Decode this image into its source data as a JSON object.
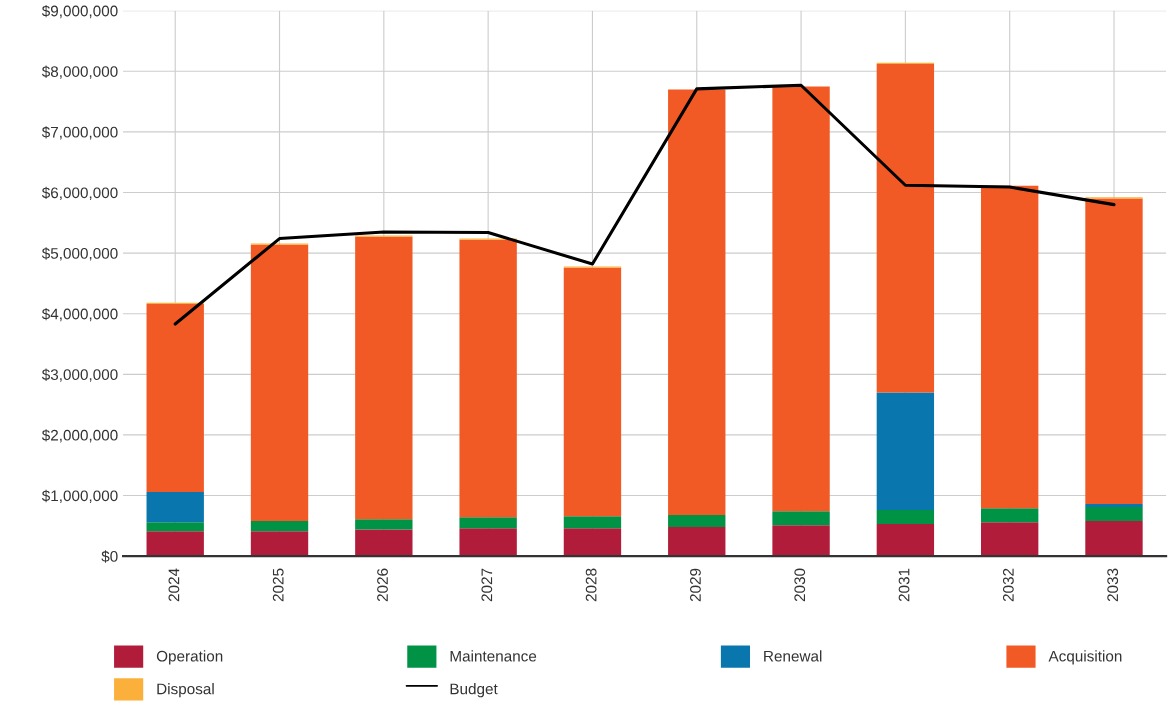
{
  "chart_data": {
    "type": "bar",
    "stacked": true,
    "categories": [
      "2024",
      "2025",
      "2026",
      "2027",
      "2028",
      "2029",
      "2030",
      "2031",
      "2032",
      "2033"
    ],
    "series": [
      {
        "name": "Operation",
        "color": "#b01c3a",
        "values": [
          410000,
          410000,
          440000,
          460000,
          460000,
          480000,
          510000,
          530000,
          560000,
          580000
        ]
      },
      {
        "name": "Maintenance",
        "color": "#009245",
        "values": [
          150000,
          170000,
          170000,
          180000,
          200000,
          200000,
          230000,
          230000,
          230000,
          230000
        ]
      },
      {
        "name": "Renewal",
        "color": "#0a76ae",
        "values": [
          500000,
          0,
          0,
          0,
          0,
          0,
          0,
          1940000,
          0,
          50000
        ]
      },
      {
        "name": "Acquisition",
        "color": "#f15a24",
        "values": [
          3100000,
          4560000,
          4660000,
          4580000,
          4100000,
          7020000,
          7010000,
          5420000,
          5320000,
          5040000
        ]
      },
      {
        "name": "Disposal",
        "color": "#fbb03b",
        "values": [
          20000,
          20000,
          20000,
          20000,
          20000,
          null,
          null,
          20000,
          null,
          20000
        ]
      },
      {
        "name": "Budget",
        "type": "line",
        "color": "#000000",
        "values": [
          3830000,
          5240000,
          5350000,
          5340000,
          4820000,
          7710000,
          7770000,
          6120000,
          6090000,
          5800000
        ]
      }
    ],
    "ylim": [
      0,
      9000000
    ],
    "yticks": [
      {
        "value": 0,
        "label": "$0"
      },
      {
        "value": 1000000,
        "label": "$1,000,000"
      },
      {
        "value": 2000000,
        "label": "$2,000,000"
      },
      {
        "value": 3000000,
        "label": "$3,000,000"
      },
      {
        "value": 4000000,
        "label": "$4,000,000"
      },
      {
        "value": 5000000,
        "label": "$5,000,000"
      },
      {
        "value": 6000000,
        "label": "$6,000,000"
      },
      {
        "value": 7000000,
        "label": "$7,000,000"
      },
      {
        "value": 8000000,
        "label": "$8,000,000"
      },
      {
        "value": 9000000,
        "label": "$9,000,000"
      }
    ],
    "grid": true,
    "legend": "bottom",
    "marker": "none",
    "line_style": "solid"
  }
}
